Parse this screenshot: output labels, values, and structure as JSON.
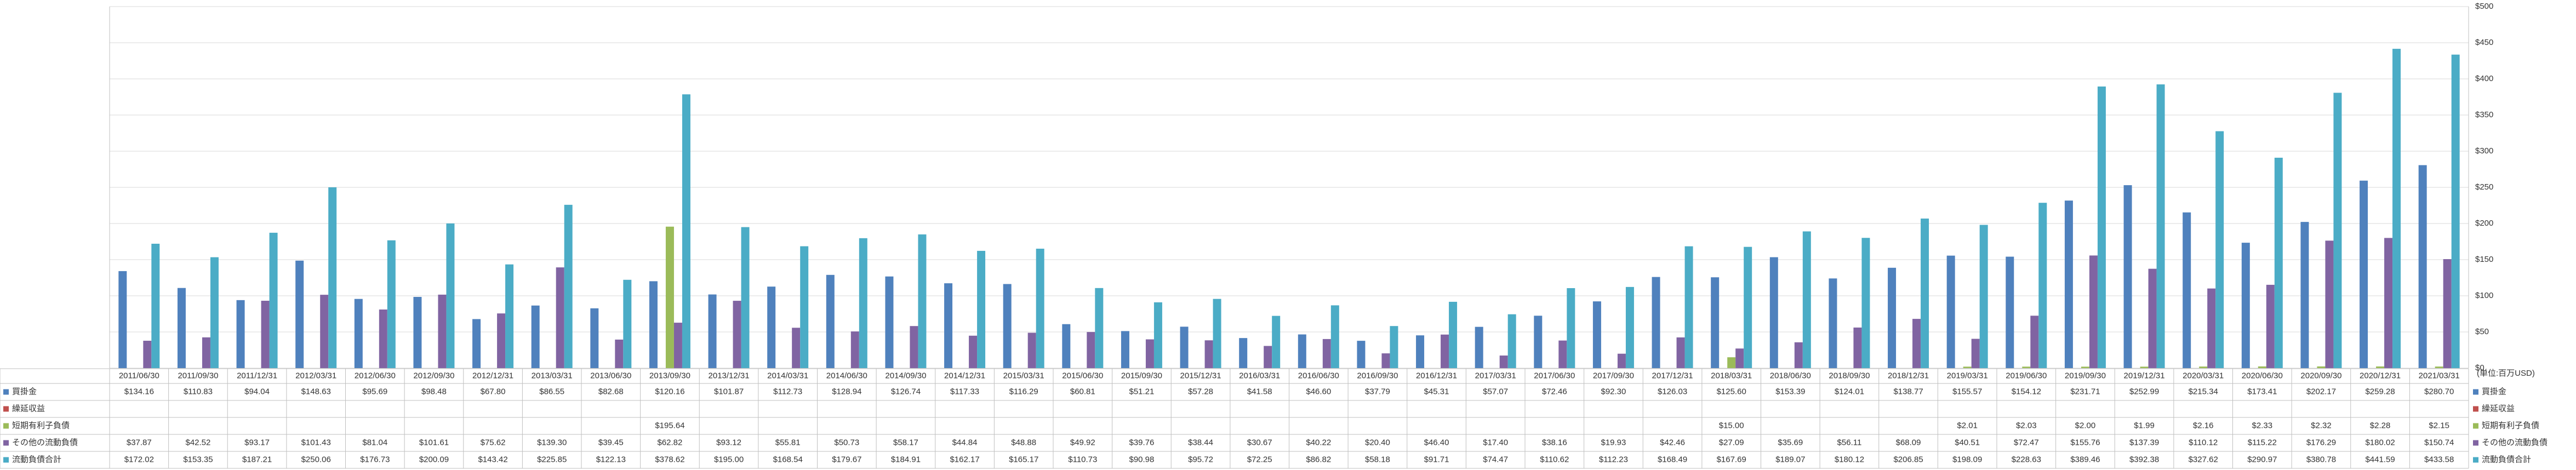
{
  "chart_data": {
    "type": "bar",
    "unit_label": "(単位:百万USD)",
    "categories": [
      "2011/06/30",
      "2011/09/30",
      "2011/12/31",
      "2012/03/31",
      "2012/06/30",
      "2012/09/30",
      "2012/12/31",
      "2013/03/31",
      "2013/06/30",
      "2013/09/30",
      "2013/12/31",
      "2014/03/31",
      "2014/06/30",
      "2014/09/30",
      "2014/12/31",
      "2015/03/31",
      "2015/06/30",
      "2015/09/30",
      "2015/12/31",
      "2016/03/31",
      "2016/06/30",
      "2016/09/30",
      "2016/12/31",
      "2017/03/31",
      "2017/06/30",
      "2017/09/30",
      "2017/12/31",
      "2018/03/31",
      "2018/06/30",
      "2018/09/30",
      "2018/12/31",
      "2019/03/31",
      "2019/06/30",
      "2019/09/30",
      "2019/12/31",
      "2020/03/31",
      "2020/06/30",
      "2020/09/30",
      "2020/12/31",
      "2021/03/31"
    ],
    "series": [
      {
        "name": "買掛金",
        "color": "#4f81bd",
        "values": [
          134.16,
          110.83,
          94.04,
          148.63,
          95.69,
          98.48,
          67.8,
          86.55,
          82.68,
          120.16,
          101.87,
          112.73,
          128.94,
          126.74,
          117.33,
          116.29,
          60.81,
          51.21,
          57.28,
          41.58,
          46.6,
          37.79,
          45.31,
          57.07,
          72.46,
          92.3,
          126.03,
          125.6,
          153.39,
          124.01,
          138.77,
          155.57,
          154.12,
          231.71,
          252.99,
          215.34,
          173.41,
          202.17,
          259.28,
          280.7
        ],
        "value_labels": [
          "$134.16",
          "$110.83",
          "$94.04",
          "$148.63",
          "$95.69",
          "$98.48",
          "$67.80",
          "$86.55",
          "$82.68",
          "$120.16",
          "$101.87",
          "$112.73",
          "$128.94",
          "$126.74",
          "$117.33",
          "$116.29",
          "$60.81",
          "$51.21",
          "$57.28",
          "$41.58",
          "$46.60",
          "$37.79",
          "$45.31",
          "$57.07",
          "$72.46",
          "$92.30",
          "$126.03",
          "$125.60",
          "$153.39",
          "$124.01",
          "$138.77",
          "$155.57",
          "$154.12",
          "$231.71",
          "$252.99",
          "$215.34",
          "$173.41",
          "$202.17",
          "$259.28",
          "$280.70"
        ]
      },
      {
        "name": "繰延収益",
        "color": "#c0504d",
        "values": [
          null,
          null,
          null,
          null,
          null,
          null,
          null,
          null,
          null,
          null,
          null,
          null,
          null,
          null,
          null,
          null,
          null,
          null,
          null,
          null,
          null,
          null,
          null,
          null,
          null,
          null,
          null,
          null,
          null,
          null,
          null,
          null,
          null,
          null,
          null,
          null,
          null,
          null,
          null,
          null
        ]
      },
      {
        "name": "短期有利子負債",
        "color": "#9bbb59",
        "values": [
          null,
          null,
          null,
          null,
          null,
          null,
          null,
          null,
          null,
          195.64,
          null,
          null,
          null,
          null,
          null,
          null,
          null,
          null,
          null,
          null,
          null,
          null,
          null,
          null,
          null,
          null,
          null,
          15.0,
          null,
          null,
          null,
          2.01,
          2.03,
          2.0,
          1.99,
          2.16,
          2.33,
          2.32,
          2.28,
          2.15
        ],
        "value_labels": [
          null,
          null,
          null,
          null,
          null,
          null,
          null,
          null,
          null,
          "$195.64",
          null,
          null,
          null,
          null,
          null,
          null,
          null,
          null,
          null,
          null,
          null,
          null,
          null,
          null,
          null,
          null,
          null,
          "$15.00",
          null,
          null,
          null,
          "$2.01",
          "$2.03",
          "$2.00",
          "$1.99",
          "$2.16",
          "$2.33",
          "$2.32",
          "$2.28",
          "$2.15"
        ]
      },
      {
        "name": "その他の流動負債",
        "color": "#8064a2",
        "values": [
          37.87,
          42.52,
          93.17,
          101.43,
          81.04,
          101.61,
          75.62,
          139.3,
          39.45,
          62.82,
          93.12,
          55.81,
          50.73,
          58.17,
          44.84,
          48.88,
          49.92,
          39.76,
          38.44,
          30.67,
          40.22,
          20.4,
          46.4,
          17.4,
          38.16,
          19.93,
          42.46,
          27.09,
          35.69,
          56.11,
          68.09,
          40.51,
          72.47,
          155.76,
          137.39,
          110.12,
          115.22,
          176.29,
          180.02,
          150.74
        ],
        "value_labels": [
          "$37.87",
          "$42.52",
          "$93.17",
          "$101.43",
          "$81.04",
          "$101.61",
          "$75.62",
          "$139.30",
          "$39.45",
          "$62.82",
          "$93.12",
          "$55.81",
          "$50.73",
          "$58.17",
          "$44.84",
          "$48.88",
          "$49.92",
          "$39.76",
          "$38.44",
          "$30.67",
          "$40.22",
          "$20.40",
          "$46.40",
          "$17.40",
          "$38.16",
          "$19.93",
          "$42.46",
          "$27.09",
          "$35.69",
          "$56.11",
          "$68.09",
          "$40.51",
          "$72.47",
          "$155.76",
          "$137.39",
          "$110.12",
          "$115.22",
          "$176.29",
          "$180.02",
          "$150.74"
        ]
      },
      {
        "name": "流動負債合計",
        "color": "#4bacc6",
        "values": [
          172.02,
          153.35,
          187.21,
          250.06,
          176.73,
          200.09,
          143.42,
          225.85,
          122.13,
          378.62,
          195.0,
          168.54,
          179.67,
          184.91,
          162.17,
          165.17,
          110.73,
          90.98,
          95.72,
          72.25,
          86.82,
          58.18,
          91.71,
          74.47,
          110.62,
          112.23,
          168.49,
          167.69,
          189.07,
          180.12,
          206.85,
          198.09,
          228.63,
          389.46,
          392.38,
          327.62,
          290.97,
          380.78,
          441.59,
          433.58
        ],
        "value_labels": [
          "$172.02",
          "$153.35",
          "$187.21",
          "$250.06",
          "$176.73",
          "$200.09",
          "$143.42",
          "$225.85",
          "$122.13",
          "$378.62",
          "$195.00",
          "$168.54",
          "$179.67",
          "$184.91",
          "$162.17",
          "$165.17",
          "$110.73",
          "$90.98",
          "$95.72",
          "$72.25",
          "$86.82",
          "$58.18",
          "$91.71",
          "$74.47",
          "$110.62",
          "$112.23",
          "$168.49",
          "$167.69",
          "$189.07",
          "$180.12",
          "$206.85",
          "$198.09",
          "$228.63",
          "$389.46",
          "$392.38",
          "$327.62",
          "$290.97",
          "$380.78",
          "$441.59",
          "$433.58"
        ]
      }
    ],
    "ylim": [
      0,
      500
    ],
    "yticks": [
      {
        "value": 0,
        "label": "$0"
      },
      {
        "value": 50,
        "label": "$50"
      },
      {
        "value": 100,
        "label": "$100"
      },
      {
        "value": 150,
        "label": "$150"
      },
      {
        "value": 200,
        "label": "$200"
      },
      {
        "value": 250,
        "label": "$250"
      },
      {
        "value": 300,
        "label": "$300"
      },
      {
        "value": 350,
        "label": "$350"
      },
      {
        "value": 400,
        "label": "$400"
      },
      {
        "value": 450,
        "label": "$450"
      },
      {
        "value": 500,
        "label": "$500"
      }
    ],
    "grid": true
  }
}
